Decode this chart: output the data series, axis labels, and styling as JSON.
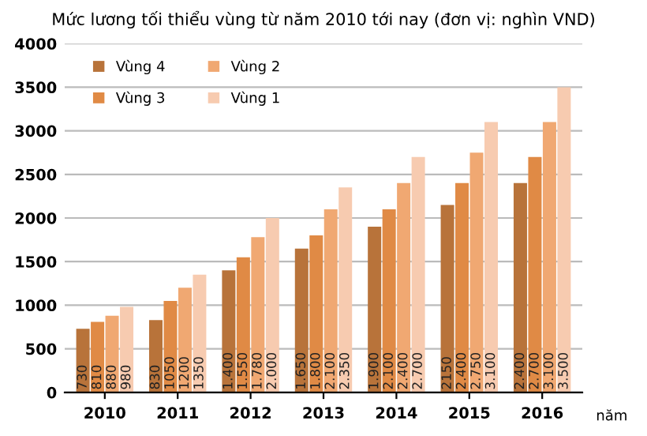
{
  "chart_data": {
    "type": "bar",
    "title": "Mức lương tối thiểu vùng từ năm 2010 tới nay (đơn vị: nghìn VND)",
    "xlabel": "năm",
    "categories": [
      "2010",
      "2011",
      "2012",
      "2013",
      "2014",
      "2015",
      "2016"
    ],
    "series": [
      {
        "name": "Vùng 4",
        "color": "#b8733a",
        "values": [
          730,
          830,
          1400,
          1650,
          1900,
          2150,
          2400
        ],
        "value_labels": [
          "730",
          "830",
          "1.400",
          "1.650",
          "1.900",
          "2150",
          "2.400"
        ]
      },
      {
        "name": "Vùng 3",
        "color": "#e08a45",
        "values": [
          810,
          1050,
          1550,
          1800,
          2100,
          2400,
          2700
        ],
        "value_labels": [
          "810",
          "1050",
          "1.550",
          "1.800",
          "2.100",
          "2.400",
          "2.700"
        ]
      },
      {
        "name": "Vùng 2",
        "color": "#f0a872",
        "values": [
          880,
          1200,
          1780,
          2100,
          2400,
          2750,
          3100
        ],
        "value_labels": [
          "880",
          "1200",
          "1.780",
          "2.100",
          "2.400",
          "2.750",
          "3.100"
        ]
      },
      {
        "name": "Vùng 1",
        "color": "#f7cbb0",
        "values": [
          980,
          1350,
          2000,
          2350,
          2700,
          3100,
          3500
        ],
        "value_labels": [
          "980",
          "1350",
          "2.000",
          "2.350",
          "2.700",
          "3.100",
          "3.500"
        ]
      }
    ],
    "ylim": [
      0,
      4000
    ],
    "yticks": [
      0,
      500,
      1000,
      1500,
      2000,
      2500,
      3000,
      3500,
      4000
    ],
    "grid": "y",
    "legend": "top left"
  }
}
